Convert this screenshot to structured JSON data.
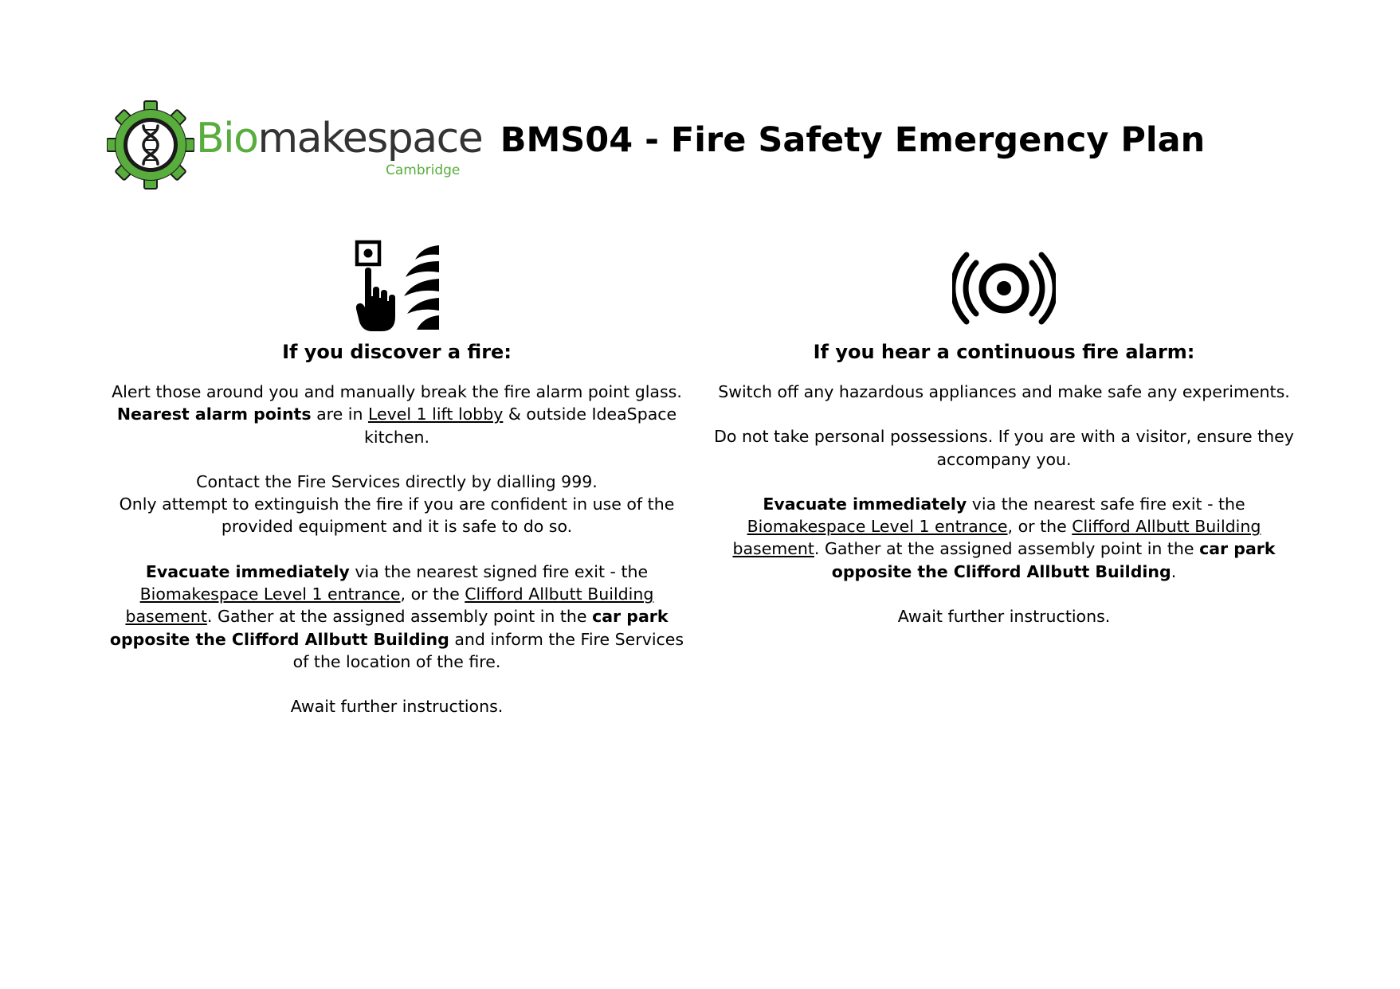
{
  "header": {
    "logo": {
      "word_green": "Bio",
      "word_dark": "makespace",
      "subtitle": "Cambridge"
    },
    "title": "BMS04 - Fire Safety Emergency Plan"
  },
  "colors": {
    "brand_green": "#58ad3c",
    "logo_text_dark": "#333333",
    "text": "#000000"
  },
  "left_column": {
    "icon": "fire-alarm-call-point-icon",
    "heading": "If you discover a fire:",
    "p1": {
      "line1": "Alert those around you and manually break the fire alarm point glass.",
      "bold": "Nearest alarm points",
      "t1": " are in ",
      "link1": "Level 1 lift lobby",
      "t2": " & outside IdeaSpace kitchen."
    },
    "p2": {
      "line1": "Contact the Fire Services directly by dialling 999.",
      "line2": "Only attempt to extinguish the fire if you are confident in use of the provided equipment and it is safe to do so."
    },
    "p3": {
      "bold1": "Evacuate immediately",
      "t1": " via the nearest signed fire exit - the ",
      "link1": "Biomakespace Level 1 entrance",
      "t2": ", or the ",
      "link2": "Clifford Allbutt Building basement",
      "t3": ". Gather at the assigned assembly point in the ",
      "bold2": "car park opposite the Clifford Allbutt Building",
      "t4": " and inform the  Fire Services of the location of the fire."
    },
    "p4": "Await further instructions."
  },
  "right_column": {
    "icon": "fire-alarm-sounder-icon",
    "heading": "If you hear a continuous fire alarm:",
    "p1": "Switch off any hazardous appliances and make safe any experiments.",
    "p2": "Do not take personal possessions. If you are with a visitor, ensure they accompany you.",
    "p3": {
      "bold1": "Evacuate immediately",
      "t1": " via the nearest safe fire exit - the ",
      "link1": "Biomakespace Level 1 entrance",
      "t2": ", or the ",
      "link2": "Clifford Allbutt Building basement",
      "t3": ". Gather at the assigned assembly point in the ",
      "bold2": "car park opposite the Clifford Allbutt Building",
      "t4": "."
    },
    "p4": "Await further instructions."
  }
}
